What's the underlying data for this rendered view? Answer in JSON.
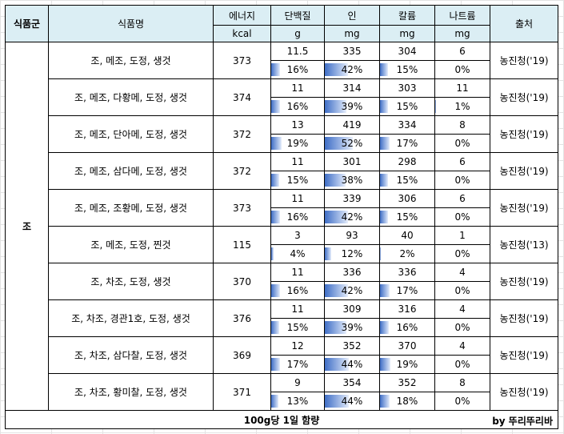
{
  "header": {
    "group": "식품군",
    "name": "식품명",
    "source": "출처",
    "columns": [
      {
        "label": "에너지",
        "unit": "kcal"
      },
      {
        "label": "단백질",
        "unit": "g"
      },
      {
        "label": "인",
        "unit": "mg"
      },
      {
        "label": "칼륨",
        "unit": "mg"
      },
      {
        "label": "나트륨",
        "unit": "mg"
      }
    ]
  },
  "group_name": "조",
  "rows": [
    {
      "name": "조, 메조, 도정, 생것",
      "energy": "373",
      "protein": {
        "v": "11.5",
        "p": "16%"
      },
      "phos": {
        "v": "335",
        "p": "42%"
      },
      "kal": {
        "v": "304",
        "p": "15%"
      },
      "na": {
        "v": "6",
        "p": "0%"
      },
      "source": "농진청('19)"
    },
    {
      "name": "조, 메조, 다황메, 도정, 생것",
      "energy": "374",
      "protein": {
        "v": "11",
        "p": "16%"
      },
      "phos": {
        "v": "314",
        "p": "39%"
      },
      "kal": {
        "v": "303",
        "p": "15%"
      },
      "na": {
        "v": "11",
        "p": "1%"
      },
      "source": "농진청('19)"
    },
    {
      "name": "조, 메조, 단아메, 도정, 생것",
      "energy": "372",
      "protein": {
        "v": "13",
        "p": "19%"
      },
      "phos": {
        "v": "419",
        "p": "52%"
      },
      "kal": {
        "v": "334",
        "p": "17%"
      },
      "na": {
        "v": "8",
        "p": "0%"
      },
      "source": "농진청('19)"
    },
    {
      "name": "조, 메조, 삼다메, 도정, 생것",
      "energy": "372",
      "protein": {
        "v": "11",
        "p": "15%"
      },
      "phos": {
        "v": "301",
        "p": "38%"
      },
      "kal": {
        "v": "298",
        "p": "15%"
      },
      "na": {
        "v": "6",
        "p": "0%"
      },
      "source": "농진청('19)"
    },
    {
      "name": "조, 메조, 조황메, 도정, 생것",
      "energy": "373",
      "protein": {
        "v": "11",
        "p": "16%"
      },
      "phos": {
        "v": "339",
        "p": "42%"
      },
      "kal": {
        "v": "306",
        "p": "15%"
      },
      "na": {
        "v": "6",
        "p": "0%"
      },
      "source": "농진청('19)"
    },
    {
      "name": "조, 메조, 도정, 찐것",
      "energy": "115",
      "protein": {
        "v": "3",
        "p": "4%"
      },
      "phos": {
        "v": "93",
        "p": "12%"
      },
      "kal": {
        "v": "40",
        "p": "2%"
      },
      "na": {
        "v": "1",
        "p": "0%"
      },
      "source": "농진청('13)"
    },
    {
      "name": "조, 차조, 도정, 생것",
      "energy": "370",
      "protein": {
        "v": "11",
        "p": "16%"
      },
      "phos": {
        "v": "336",
        "p": "42%"
      },
      "kal": {
        "v": "336",
        "p": "17%"
      },
      "na": {
        "v": "4",
        "p": "0%"
      },
      "source": "농진청('19)"
    },
    {
      "name": "조, 차조, 경관1호, 도정, 생것",
      "energy": "376",
      "protein": {
        "v": "11",
        "p": "15%"
      },
      "phos": {
        "v": "309",
        "p": "39%"
      },
      "kal": {
        "v": "316",
        "p": "16%"
      },
      "na": {
        "v": "4",
        "p": "0%"
      },
      "source": "농진청('19)"
    },
    {
      "name": "조, 차조, 삼다찰, 도정, 생것",
      "energy": "369",
      "protein": {
        "v": "12",
        "p": "17%"
      },
      "phos": {
        "v": "352",
        "p": "44%"
      },
      "kal": {
        "v": "370",
        "p": "19%"
      },
      "na": {
        "v": "4",
        "p": "0%"
      },
      "source": "농진청('19)"
    },
    {
      "name": "조, 차조, 황미찰, 도정, 생것",
      "energy": "371",
      "protein": {
        "v": "9",
        "p": "13%"
      },
      "phos": {
        "v": "354",
        "p": "44%"
      },
      "kal": {
        "v": "352",
        "p": "18%"
      },
      "na": {
        "v": "8",
        "p": "0%"
      },
      "source": "농진청('19)"
    }
  ],
  "footer": {
    "note": "100g당 1일 함량",
    "author": "by 뚜리뚜리바"
  },
  "colors": {
    "header_bg": "#dbeef4",
    "bar_start": "#3f6ec6",
    "bar_end": "#e9effa"
  }
}
